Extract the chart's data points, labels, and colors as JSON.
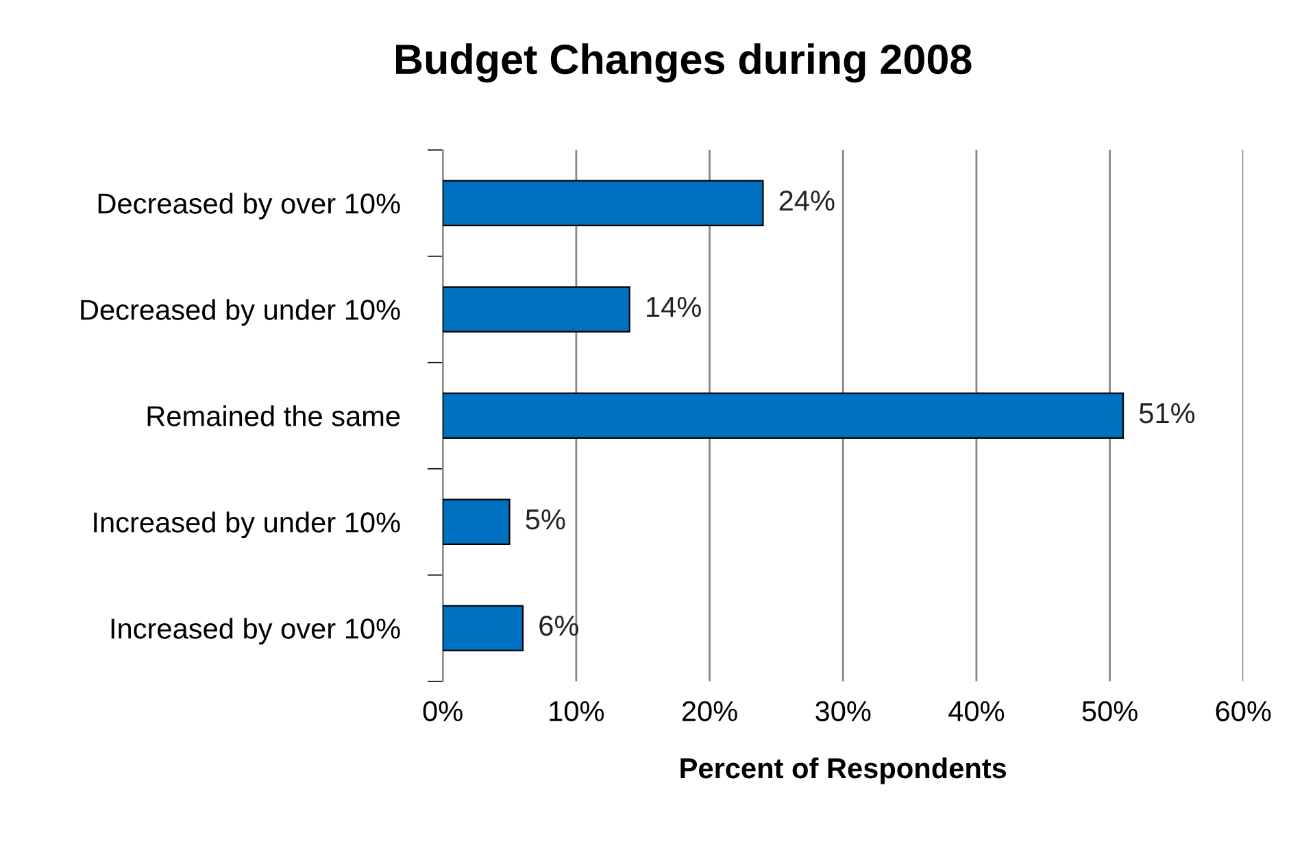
{
  "chart_data": {
    "type": "bar",
    "orientation": "horizontal",
    "title": "Budget Changes during 2008",
    "xlabel": "Percent of Respondents",
    "categories": [
      "Decreased by over 10%",
      "Decreased by under 10%",
      "Remained the same",
      "Increased by under 10%",
      "Increased by over 10%"
    ],
    "values": [
      24,
      14,
      51,
      5,
      6
    ],
    "value_labels": [
      "24%",
      "14%",
      "51%",
      "5%",
      "6%"
    ],
    "color": "#0070c0",
    "xlim": [
      0,
      60
    ],
    "xticks": [
      {
        "value": 0,
        "label": "0%"
      },
      {
        "value": 10,
        "label": "10%"
      },
      {
        "value": 20,
        "label": "20%"
      },
      {
        "value": 30,
        "label": "30%"
      },
      {
        "value": 40,
        "label": "40%"
      },
      {
        "value": 50,
        "label": "50%"
      },
      {
        "value": 60,
        "label": "60%"
      }
    ],
    "grid": "x",
    "legend": false
  }
}
